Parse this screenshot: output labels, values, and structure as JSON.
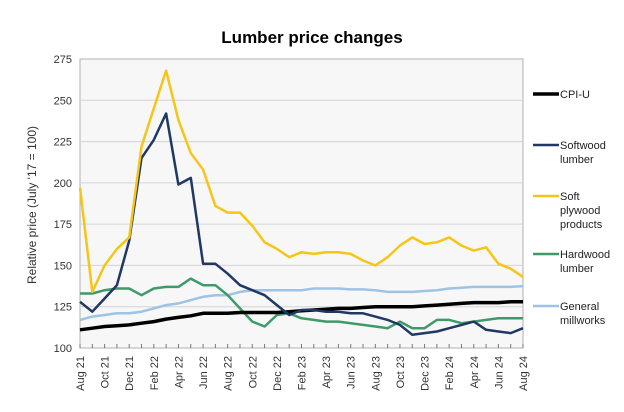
{
  "chart_data": {
    "type": "line",
    "title": "Lumber price changes",
    "xlabel": "",
    "ylabel": "Relative price (July '17 = 100)",
    "ylim": [
      100,
      275
    ],
    "yticks": [
      100,
      125,
      150,
      175,
      200,
      225,
      250,
      275
    ],
    "grid": true,
    "legend_placement": "right",
    "x": [
      "Aug 21",
      "Sep 21",
      "Oct 21",
      "Nov 21",
      "Dec 21",
      "Jan 22",
      "Feb 22",
      "Mar 22",
      "Apr 22",
      "May 22",
      "Jun 22",
      "Jul 22",
      "Aug 22",
      "Sep 22",
      "Oct 22",
      "Nov 22",
      "Dec 22",
      "Jan 23",
      "Feb 23",
      "Mar 23",
      "Apr 23",
      "May 23",
      "Jun 23",
      "Jul 23",
      "Aug 23",
      "Sep 23",
      "Oct 23",
      "Nov 23",
      "Dec 23",
      "Jan 24",
      "Feb 24",
      "Mar 24",
      "Apr 24",
      "May 24",
      "Jun 24",
      "Jul 24",
      "Aug 24"
    ],
    "xtick_labels": [
      "Aug 21",
      "Oct 21",
      "Dec 21",
      "Feb 22",
      "Apr 22",
      "Jun 22",
      "Aug 22",
      "Oct 22",
      "Dec 22",
      "Feb 23",
      "Apr 23",
      "Jun 23",
      "Aug 23",
      "Oct 23",
      "Dec 23",
      "Feb 24",
      "Apr 24",
      "Jun 24",
      "Aug 24"
    ],
    "series": [
      {
        "name": "CPI-U",
        "color": "#000000",
        "values": [
          111,
          112,
          113,
          113.5,
          114,
          115,
          116,
          117.5,
          118.5,
          119.5,
          121,
          121,
          121,
          121.5,
          121.5,
          121.5,
          121.5,
          122,
          122.5,
          123,
          123.5,
          124,
          124,
          124.5,
          125,
          125,
          125,
          125,
          125.5,
          126,
          126.5,
          127,
          127.5,
          127.5,
          127.5,
          128,
          128
        ]
      },
      {
        "name": "Softwood lumber",
        "color": "#1f3864",
        "values": [
          128,
          122,
          130,
          138,
          165,
          215,
          226,
          242,
          199,
          203,
          151,
          151,
          145,
          138,
          135,
          132,
          126,
          120,
          123,
          123,
          122,
          122,
          121,
          121,
          119,
          117,
          114,
          108,
          109,
          110,
          112,
          114,
          116,
          111,
          110,
          109,
          112
        ]
      },
      {
        "name": "Soft plywood products",
        "color": "#f5c518",
        "values": [
          197,
          134,
          150,
          160,
          167,
          222,
          245,
          268,
          238,
          218,
          208,
          186,
          182,
          182,
          174,
          164,
          160,
          155,
          158,
          157,
          158,
          158,
          157,
          153,
          150,
          155,
          162,
          167,
          163,
          164,
          167,
          162,
          159,
          161,
          151,
          148,
          143
        ]
      },
      {
        "name": "Hardwood lumber",
        "color": "#3f9a6a",
        "values": [
          133,
          133,
          135,
          136,
          136,
          132,
          136,
          137,
          137,
          142,
          138,
          138,
          132,
          124,
          116,
          113,
          120,
          121,
          118,
          117,
          116,
          116,
          115,
          114,
          113,
          112,
          116,
          112,
          112,
          117,
          117,
          115,
          116,
          117,
          118,
          118,
          118
        ]
      },
      {
        "name": "General millworks",
        "color": "#9dc3e6",
        "values": [
          117,
          119,
          120,
          121,
          121,
          122,
          124,
          126,
          127,
          129,
          131,
          132,
          132,
          134,
          135,
          135,
          135,
          135,
          135,
          136,
          136,
          136,
          135.5,
          135.5,
          135,
          134,
          134,
          134,
          134.5,
          135,
          136,
          136.5,
          137,
          137,
          137,
          137,
          137.5
        ]
      }
    ]
  }
}
